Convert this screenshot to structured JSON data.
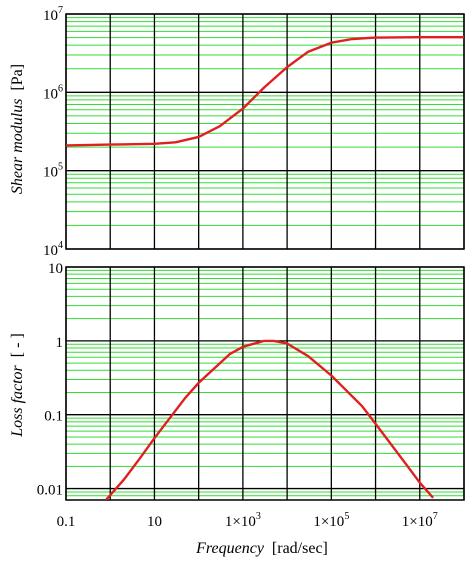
{
  "colors": {
    "minor_grid": "#33dd33",
    "major_grid": "#000000",
    "curve": "#e02020",
    "frame": "#000000"
  },
  "chart_data": [
    {
      "type": "line",
      "panel": "top",
      "xscale": "log",
      "yscale": "log",
      "xlim": [
        0.1,
        100000000.0
      ],
      "ylim": [
        10000.0,
        10000000.0
      ],
      "ylabel_main": "Shear modulus",
      "ylabel_unit": "[Pa]",
      "yticks": [
        {
          "base": "10",
          "exp": "4",
          "value": 10000.0
        },
        {
          "base": "10",
          "exp": "5",
          "value": 100000.0
        },
        {
          "base": "10",
          "exp": "6",
          "value": 1000000.0
        },
        {
          "base": "10",
          "exp": "7",
          "value": 10000000.0
        }
      ],
      "grid": true,
      "series": [
        {
          "x": [
            0.1,
            1,
            10,
            30,
            100,
            300,
            1000,
            3000,
            10000,
            30000,
            100000,
            300000,
            1000000,
            10000000,
            100000000
          ],
          "y": [
            210000,
            215000,
            220000,
            230000,
            270000,
            370000,
            620000,
            1150000,
            2100000,
            3300000,
            4300000,
            4800000,
            5000000,
            5050000,
            5060000
          ]
        }
      ]
    },
    {
      "type": "line",
      "panel": "bottom",
      "xscale": "log",
      "yscale": "log",
      "xlim": [
        0.1,
        100000000.0
      ],
      "ylim": [
        0.007,
        10
      ],
      "ylabel_main": "Loss factor",
      "ylabel_unit": "[ - ]",
      "yticks": [
        {
          "label": "10",
          "value": 10
        },
        {
          "label": "1",
          "value": 1
        },
        {
          "label": "0.1",
          "value": 0.1
        },
        {
          "label": "0.01",
          "value": 0.01
        }
      ],
      "xticks": [
        {
          "label": "0.1",
          "value": 0.1
        },
        {
          "label": "10",
          "value": 10
        },
        {
          "base": "1×10",
          "exp": "3",
          "value": 1000
        },
        {
          "base": "1×10",
          "exp": "5",
          "value": 100000
        },
        {
          "base": "1×10",
          "exp": "7",
          "value": 10000000
        }
      ],
      "xlabel_main": "Frequency",
      "xlabel_unit": "[rad/sec]",
      "grid": true,
      "series": [
        {
          "x": [
            0.8,
            2,
            5,
            10,
            50,
            100,
            500,
            1000,
            3000,
            5000,
            10000,
            30000,
            100000,
            500000,
            1000000,
            5000000,
            10000000,
            20000000
          ],
          "y": [
            0.007,
            0.013,
            0.027,
            0.048,
            0.17,
            0.27,
            0.66,
            0.83,
            1.0,
            1.0,
            0.92,
            0.62,
            0.34,
            0.13,
            0.075,
            0.021,
            0.012,
            0.0075
          ]
        }
      ]
    }
  ]
}
